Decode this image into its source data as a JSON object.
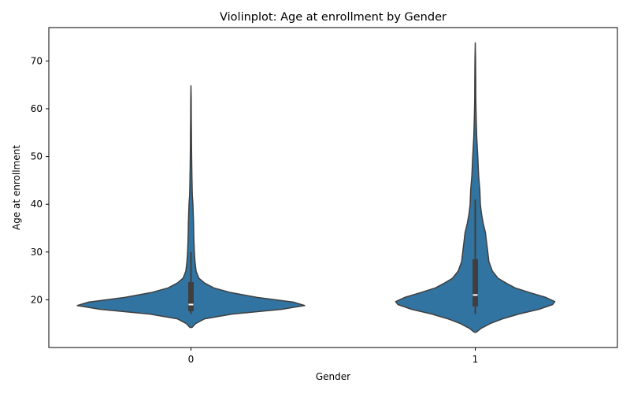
{
  "chart_data": {
    "type": "violin",
    "title": "Violinplot: Age at enrollment by Gender",
    "xlabel": "Gender",
    "ylabel": "Age at enrollment",
    "categories": [
      "0",
      "1"
    ],
    "ylim": [
      10,
      77
    ],
    "yticks": [
      20,
      30,
      40,
      50,
      60,
      70
    ],
    "grid": false,
    "colors": {
      "fill": "#3274a1",
      "edge": "#3f3f3f",
      "box": "#3f3f3f",
      "median": "#ffffff"
    },
    "violins": [
      {
        "category": "0",
        "min": 14.2,
        "max": 64.8,
        "q1": 17.6,
        "median": 19,
        "q3": 23.7,
        "whisker_low": 17,
        "whisker_high": 30,
        "profile": [
          [
            14.2,
            0.01
          ],
          [
            15.0,
            0.04
          ],
          [
            16.0,
            0.12
          ],
          [
            17.0,
            0.36
          ],
          [
            18.0,
            0.8
          ],
          [
            18.8,
            1.0
          ],
          [
            19.5,
            0.9
          ],
          [
            20.5,
            0.58
          ],
          [
            21.5,
            0.35
          ],
          [
            22.5,
            0.2
          ],
          [
            23.5,
            0.12
          ],
          [
            24.5,
            0.07
          ],
          [
            26,
            0.045
          ],
          [
            28,
            0.035
          ],
          [
            30,
            0.03
          ],
          [
            32,
            0.026
          ],
          [
            34,
            0.024
          ],
          [
            36,
            0.023
          ],
          [
            38,
            0.02
          ],
          [
            40,
            0.017
          ],
          [
            42,
            0.012
          ],
          [
            45,
            0.009
          ],
          [
            48,
            0.007
          ],
          [
            52,
            0.005
          ],
          [
            55,
            0.004
          ],
          [
            58,
            0.003
          ],
          [
            62,
            0.002
          ],
          [
            64.8,
            0.0
          ]
        ]
      },
      {
        "category": "1",
        "min": 13.2,
        "max": 73.8,
        "q1": 18.6,
        "median": 21,
        "q3": 28.5,
        "whisker_low": 17,
        "whisker_high": 41,
        "profile": [
          [
            13.2,
            0.01
          ],
          [
            14.0,
            0.05
          ],
          [
            15.0,
            0.13
          ],
          [
            16.0,
            0.24
          ],
          [
            17.0,
            0.38
          ],
          [
            18.0,
            0.56
          ],
          [
            19.0,
            0.68
          ],
          [
            19.6,
            0.7
          ],
          [
            20.5,
            0.62
          ],
          [
            21.5,
            0.48
          ],
          [
            22.5,
            0.35
          ],
          [
            23.5,
            0.27
          ],
          [
            24.5,
            0.2
          ],
          [
            26,
            0.15
          ],
          [
            28,
            0.12
          ],
          [
            30,
            0.11
          ],
          [
            32,
            0.1
          ],
          [
            34,
            0.09
          ],
          [
            36,
            0.07
          ],
          [
            38,
            0.055
          ],
          [
            40,
            0.045
          ],
          [
            43,
            0.04
          ],
          [
            46,
            0.03
          ],
          [
            50,
            0.022
          ],
          [
            54,
            0.013
          ],
          [
            58,
            0.008
          ],
          [
            62,
            0.005
          ],
          [
            66,
            0.004
          ],
          [
            70,
            0.003
          ],
          [
            73.8,
            0.0
          ]
        ]
      }
    ]
  }
}
